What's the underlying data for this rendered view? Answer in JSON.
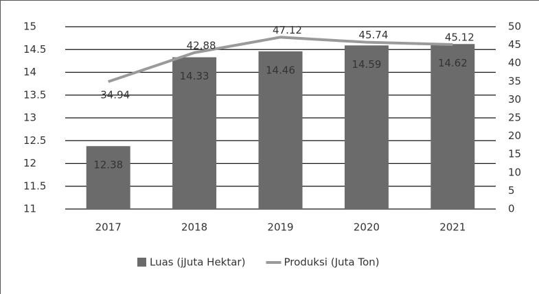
{
  "chart_data": {
    "type": "bar",
    "categories": [
      "2017",
      "2018",
      "2019",
      "2020",
      "2021"
    ],
    "series": [
      {
        "name": "Luas (jJuta Hektar)",
        "color": "#6b6b6b",
        "values": [
          12.38,
          14.33,
          14.46,
          14.59,
          14.62
        ]
      },
      {
        "name": "Produksi (Juta Ton)",
        "color": "#9a9a9a",
        "type": "line",
        "axis": "y2",
        "values": [
          34.94,
          42.88,
          47.12,
          45.74,
          45.12
        ]
      }
    ],
    "ylim": [
      11,
      15
    ],
    "yticks": [
      11,
      11.5,
      12,
      12.5,
      13,
      13.5,
      14,
      14.5,
      15
    ],
    "y2lim": [
      0,
      50
    ],
    "y2ticks": [
      0,
      5,
      10,
      15,
      20,
      25,
      30,
      35,
      40,
      45,
      50
    ],
    "grid": true,
    "legend": "bottom"
  }
}
